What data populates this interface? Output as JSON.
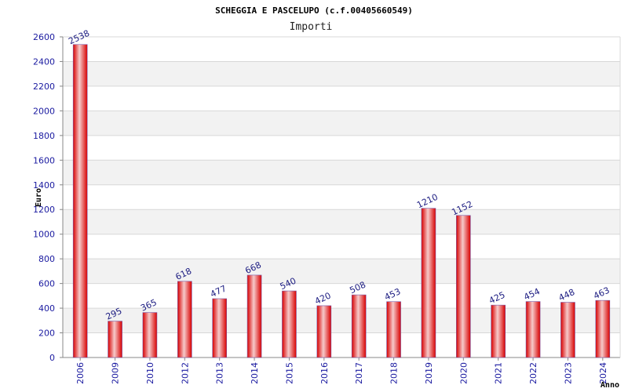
{
  "chart_data": {
    "type": "bar",
    "title": "SCHEGGIA E PASCELUPO (c.f.00405660549)",
    "subtitle": "Importi",
    "xlabel": "Anno",
    "ylabel": "Euro",
    "categories": [
      "2006",
      "2009",
      "2010",
      "2012",
      "2013",
      "2014",
      "2015",
      "2016",
      "2017",
      "2018",
      "2019",
      "2020",
      "2021",
      "2022",
      "2023",
      "2024"
    ],
    "values": [
      2538,
      295,
      365,
      618,
      477,
      668,
      540,
      420,
      508,
      453,
      1210,
      1152,
      425,
      454,
      448,
      463
    ],
    "ylim": [
      0,
      2600
    ],
    "yticks": [
      0,
      200,
      400,
      600,
      800,
      1000,
      1200,
      1400,
      1600,
      1800,
      2000,
      2200,
      2400,
      2600
    ],
    "grid": true,
    "colors": {
      "bar_edge": "#e00000",
      "bar_highlight": "#f4c4c4",
      "band": "#f2f2f2",
      "gridline": "#d8d8d8",
      "tick_text": "#1a1aa0",
      "value_text": "#1a1a80"
    }
  }
}
